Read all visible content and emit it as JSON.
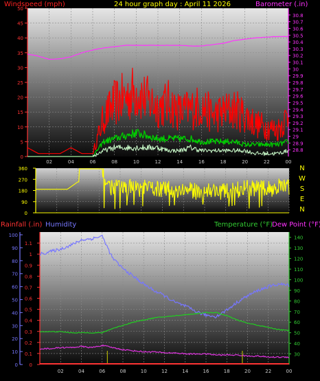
{
  "header": {
    "title": "24 hour graph day : April 11 2026",
    "wind_label": "Windspeed (mph)",
    "baro_label": "Barometer (.in)"
  },
  "mid_header": {
    "rain_label": "Rainfall (.in)",
    "humidity_label": "Humidity",
    "temp_label": "Temperature (°F)",
    "dew_label": "Dew Point (°F)"
  },
  "colors": {
    "wind_gust": "#ff0000",
    "wind_avg": "#00cc00",
    "wind_calm": "#ccffcc",
    "barometer": "#ff33ff",
    "direction": "#ffff00",
    "rain": "#ff3333",
    "rain_tick": "#cccc00",
    "humidity": "#7777ff",
    "temperature": "#22cc22",
    "dewpoint": "#dd33dd",
    "temp_axis": "#33cc33"
  },
  "x_ticks": [
    "02",
    "04",
    "06",
    "08",
    "10",
    "12",
    "14",
    "16",
    "18",
    "20",
    "22",
    "00"
  ],
  "chart_data": [
    {
      "type": "line",
      "title": "24 hour graph day : April 11 2026",
      "ylabel": "Windspeed (mph)",
      "ylim": [
        0,
        50
      ],
      "y_ticks": [
        0,
        5,
        10,
        15,
        20,
        25,
        30,
        35,
        40,
        45,
        50
      ],
      "y2label": "Barometer (.in)",
      "y2lim": [
        28.7,
        30.9
      ],
      "y2_ticks": [
        "28.8",
        "28.9",
        "29",
        "29.1",
        "29.2",
        "29.3",
        "29.4",
        "29.5",
        "29.6",
        "29.7",
        "29.8",
        "29.9",
        "30",
        "30.1",
        "30.2",
        "30.3",
        "30.4",
        "30.5",
        "30.6",
        "30.7",
        "30.8"
      ],
      "x_hours": [
        0,
        1,
        2,
        3,
        4,
        5,
        6,
        7,
        8,
        9,
        10,
        11,
        12,
        13,
        14,
        15,
        16,
        17,
        18,
        19,
        20,
        21,
        22,
        23,
        24
      ],
      "series": [
        {
          "name": "gust",
          "axis": "left",
          "values": [
            3,
            1,
            1,
            1,
            3,
            1,
            1,
            13,
            18,
            20,
            22,
            19,
            17,
            18,
            15,
            16,
            17,
            14,
            15,
            16,
            14,
            11,
            10,
            9,
            14
          ]
        },
        {
          "name": "average",
          "axis": "left",
          "values": [
            0,
            0,
            0,
            0,
            0,
            0,
            0,
            5,
            6,
            7,
            8,
            7,
            6,
            6,
            6,
            6,
            5,
            5,
            5,
            5,
            4,
            4,
            4,
            4,
            5
          ]
        },
        {
          "name": "low",
          "axis": "left",
          "values": [
            0,
            0,
            0,
            0,
            0,
            0,
            0,
            2,
            3,
            3,
            3,
            3,
            3,
            2,
            2,
            3,
            2,
            2,
            2,
            2,
            2,
            1,
            1,
            1,
            2
          ]
        },
        {
          "name": "barometer",
          "axis": "right",
          "values": [
            30.22,
            30.19,
            30.14,
            30.15,
            30.18,
            30.24,
            30.28,
            30.31,
            30.33,
            30.35,
            30.35,
            30.35,
            30.35,
            30.35,
            30.35,
            30.34,
            30.34,
            30.36,
            30.38,
            30.42,
            30.44,
            30.46,
            30.47,
            30.48,
            30.48
          ]
        }
      ]
    },
    {
      "type": "line",
      "ylabel": "Wind direction",
      "ylim": [
        0,
        360
      ],
      "y_ticks": [
        0,
        90,
        180,
        270,
        360
      ],
      "compass_labels": [
        "N",
        "W",
        "S",
        "E",
        "N"
      ],
      "x_hours": [
        0,
        1,
        2,
        3,
        4,
        5,
        6,
        7,
        8,
        9,
        10,
        11,
        12,
        13,
        14,
        15,
        16,
        17,
        18,
        19,
        20,
        21,
        22,
        23,
        24
      ],
      "series": [
        {
          "name": "direction",
          "values": [
            190,
            190,
            190,
            190,
            250,
            360,
            360,
            210,
            200,
            205,
            195,
            200,
            190,
            185,
            185,
            175,
            180,
            180,
            170,
            190,
            195,
            200,
            190,
            215,
            200
          ]
        }
      ]
    },
    {
      "type": "line",
      "ylabel": "Rainfall (.in)",
      "ylim": [
        0,
        1.2
      ],
      "y_ticks": [
        "0",
        "0.1",
        "0.2",
        "0.3",
        "0.4",
        "0.5",
        "0.6",
        "0.7",
        "0.8",
        "0.9",
        "1",
        "1.1"
      ],
      "humidity_ticks": [
        0,
        10,
        20,
        30,
        40,
        50,
        60,
        70,
        80,
        90,
        100
      ],
      "y2label": "Temperature (°F)",
      "y2lim": [
        20,
        145
      ],
      "y2_ticks": [
        30,
        40,
        50,
        60,
        70,
        80,
        90,
        100,
        110,
        120,
        130,
        140
      ],
      "x_hours": [
        0,
        1,
        2,
        3,
        4,
        5,
        6,
        7,
        8,
        9,
        10,
        11,
        12,
        13,
        14,
        15,
        16,
        17,
        18,
        19,
        20,
        21,
        22,
        23,
        24
      ],
      "series": [
        {
          "name": "Humidity",
          "axis": "humidity",
          "values": [
            85,
            87,
            89,
            92,
            96,
            97,
            99,
            82,
            74,
            68,
            62,
            57,
            53,
            48,
            45,
            41,
            38,
            37,
            42,
            48,
            53,
            57,
            60,
            62,
            61
          ]
        },
        {
          "name": "Temperature (°F)",
          "axis": "right",
          "values": [
            51,
            51,
            51,
            50,
            50,
            50,
            50,
            54,
            57,
            60,
            62,
            64,
            65,
            66,
            67,
            68,
            69,
            69,
            66,
            62,
            59,
            57,
            55,
            53,
            52
          ]
        },
        {
          "name": "Dew Point (°F)",
          "axis": "right",
          "values": [
            35,
            35,
            36,
            36,
            37,
            36,
            38,
            36,
            34,
            33,
            32,
            32,
            31,
            31,
            30,
            30,
            30,
            29,
            29,
            29,
            28,
            28,
            27,
            27,
            27
          ]
        },
        {
          "name": "Rainfall (.in)",
          "axis": "left",
          "values": [
            0,
            0,
            0,
            0,
            0,
            0,
            0,
            0,
            0,
            0,
            0,
            0,
            0,
            0,
            0,
            0,
            0,
            0,
            0,
            0,
            0,
            0,
            0,
            0,
            0
          ]
        }
      ]
    }
  ]
}
